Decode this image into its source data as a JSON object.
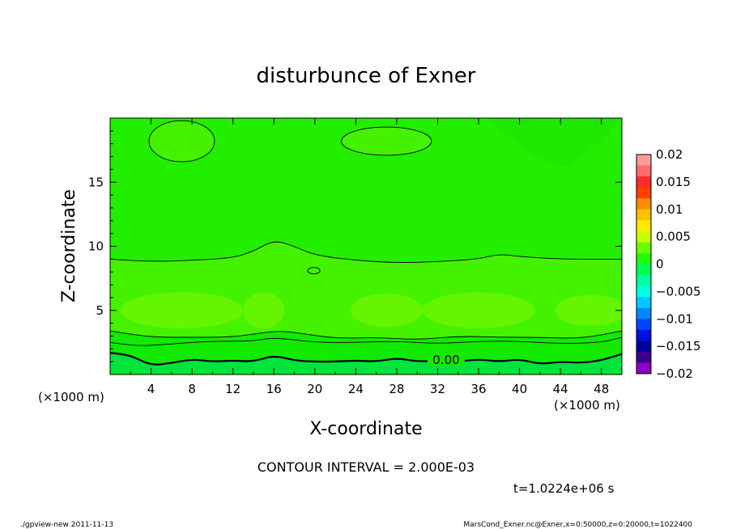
{
  "chart_data": {
    "type": "contour",
    "title": "disturbunce of Exner",
    "xlabel": "X-coordinate",
    "ylabel": "Z-coordinate",
    "x_unit_left": "(×1000 m)",
    "x_unit_right": "(×1000 m)",
    "xlim": [
      0,
      50
    ],
    "ylim": [
      0,
      20
    ],
    "x_ticks": [
      4,
      8,
      12,
      16,
      20,
      24,
      28,
      32,
      36,
      40,
      44,
      48
    ],
    "y_ticks": [
      5,
      10,
      15
    ],
    "zero_contour_label": "0.00",
    "contour_interval_text": "CONTOUR INTERVAL = 2.000E-03",
    "time_text": "t=1.0224e+06 s",
    "colorbar": {
      "tick_labels": [
        "0.02",
        "0.015",
        "0.01",
        "0.005",
        "0",
        "−0.005",
        "−0.01",
        "−0.015",
        "−0.02"
      ],
      "tick_values": [
        0.02,
        0.015,
        0.01,
        0.005,
        0,
        -0.005,
        -0.01,
        -0.015,
        -0.02
      ],
      "colors_top_to_bottom": [
        "#ff9a9a",
        "#ff6a6a",
        "#ff2a2a",
        "#ff4000",
        "#ff8c00",
        "#ffc000",
        "#ffea00",
        "#c8ff00",
        "#66ff00",
        "#22ff00",
        "#00ff50",
        "#00ffa0",
        "#00ffe0",
        "#00c8ff",
        "#0088ff",
        "#0044ff",
        "#0010e0",
        "#0000a0",
        "#3a0090",
        "#8a00c8"
      ],
      "range": [
        -0.02,
        0.02
      ]
    },
    "fill_colors": {
      "background": "#22ee00",
      "inner_band": "#44f200",
      "positive_patch": "#66f500",
      "lower_band": "#12ea00",
      "bottom_band": "#00e43c"
    },
    "contour_lines": [
      {
        "level": 0.002,
        "points": [
          [
            0,
            9.0
          ],
          [
            4,
            8.8
          ],
          [
            8,
            8.9
          ],
          [
            12,
            9.1
          ],
          [
            14,
            9.6
          ],
          [
            16,
            10.5
          ],
          [
            18,
            10.0
          ],
          [
            20,
            9.3
          ],
          [
            24,
            8.9
          ],
          [
            28,
            8.7
          ],
          [
            32,
            8.8
          ],
          [
            36,
            9.0
          ],
          [
            38,
            9.4
          ],
          [
            40,
            9.2
          ],
          [
            44,
            9.0
          ],
          [
            50,
            9.0
          ]
        ]
      },
      {
        "level": -0.002,
        "points": [
          [
            0,
            3.4
          ],
          [
            4,
            2.9
          ],
          [
            8,
            2.9
          ],
          [
            12,
            2.9
          ],
          [
            16,
            3.4
          ],
          [
            18,
            3.3
          ],
          [
            22,
            2.8
          ],
          [
            26,
            2.9
          ],
          [
            30,
            2.7
          ],
          [
            34,
            3.0
          ],
          [
            38,
            2.9
          ],
          [
            42,
            2.9
          ],
          [
            46,
            2.8
          ],
          [
            50,
            3.4
          ]
        ]
      },
      {
        "level": -0.004,
        "points": [
          [
            0,
            2.5
          ],
          [
            3,
            2.2
          ],
          [
            6,
            2.4
          ],
          [
            10,
            2.6
          ],
          [
            14,
            2.6
          ],
          [
            16,
            2.9
          ],
          [
            20,
            2.5
          ],
          [
            24,
            2.5
          ],
          [
            28,
            2.6
          ],
          [
            32,
            2.4
          ],
          [
            36,
            2.6
          ],
          [
            40,
            2.6
          ],
          [
            44,
            2.4
          ],
          [
            48,
            2.5
          ],
          [
            50,
            2.9
          ]
        ]
      },
      {
        "level": 0.0,
        "bold": true,
        "points": [
          [
            0,
            1.7
          ],
          [
            2,
            1.5
          ],
          [
            4,
            0.7
          ],
          [
            6,
            0.9
          ],
          [
            8,
            1.2
          ],
          [
            10,
            1.0
          ],
          [
            12,
            1.1
          ],
          [
            14,
            1.0
          ],
          [
            16,
            1.5
          ],
          [
            18,
            1.1
          ],
          [
            20,
            1.0
          ],
          [
            22,
            1.0
          ],
          [
            24,
            1.1
          ],
          [
            26,
            1.0
          ],
          [
            28,
            1.3
          ],
          [
            30,
            1.0
          ],
          [
            32,
            1.1
          ],
          [
            34,
            1.0
          ],
          [
            36,
            1.2
          ],
          [
            38,
            1.0
          ],
          [
            40,
            1.2
          ],
          [
            42,
            0.8
          ],
          [
            44,
            1.0
          ],
          [
            46,
            0.9
          ],
          [
            48,
            1.1
          ],
          [
            50,
            1.6
          ]
        ]
      }
    ],
    "closed_contours": [
      {
        "level": 0.002,
        "cx": 7,
        "cy": 18.2,
        "rx": 3.2,
        "ry": 1.6
      },
      {
        "level": 0.002,
        "cx": 27,
        "cy": 18.2,
        "rx": 4.4,
        "ry": 1.1
      },
      {
        "level": 0.002,
        "cx": 19.9,
        "cy": 8.1,
        "rx": 0.6,
        "ry": 0.25
      }
    ],
    "positive_patches": [
      {
        "cx": 7,
        "cy": 5.0,
        "rx": 6,
        "ry": 1.4
      },
      {
        "cx": 15,
        "cy": 5.0,
        "rx": 2.0,
        "ry": 1.4
      },
      {
        "cx": 27,
        "cy": 5.0,
        "rx": 3.5,
        "ry": 1.3
      },
      {
        "cx": 36,
        "cy": 5.0,
        "rx": 5.5,
        "ry": 1.4
      },
      {
        "cx": 47,
        "cy": 5.0,
        "rx": 3.5,
        "ry": 1.2
      }
    ]
  },
  "footer": {
    "left": "./gpview-new   2011-11-13",
    "right": "MarsCond_Exner.nc@Exner,x=0:50000,z=0:20000,t=1022400"
  }
}
